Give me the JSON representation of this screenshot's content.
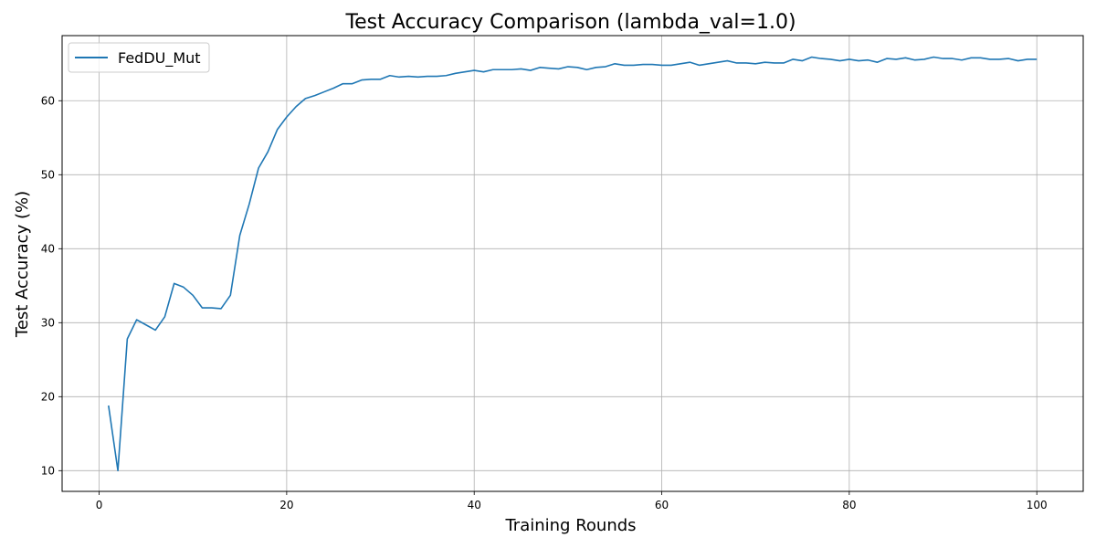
{
  "chart_data": {
    "type": "line",
    "title": "Test Accuracy Comparison (lambda_val=1.0)",
    "xlabel": "Training Rounds",
    "ylabel": "Test Accuracy (%)",
    "xlim": [
      -3.95,
      104.95
    ],
    "ylim": [
      7.2,
      68.8
    ],
    "xticks": [
      0,
      20,
      40,
      60,
      80,
      100
    ],
    "yticks": [
      10,
      20,
      30,
      40,
      50,
      60
    ],
    "grid": true,
    "legend": "top-left",
    "series": [
      {
        "name": "FedDU_Mut",
        "color": "#1f77b4",
        "x": [
          1,
          2,
          3,
          4,
          5,
          6,
          7,
          8,
          9,
          10,
          11,
          12,
          13,
          14,
          15,
          16,
          17,
          18,
          19,
          20,
          21,
          22,
          23,
          24,
          25,
          26,
          27,
          28,
          29,
          30,
          31,
          32,
          33,
          34,
          35,
          36,
          37,
          38,
          39,
          40,
          41,
          42,
          43,
          44,
          45,
          46,
          47,
          48,
          49,
          50,
          51,
          52,
          53,
          54,
          55,
          56,
          57,
          58,
          59,
          60,
          61,
          62,
          63,
          64,
          65,
          66,
          67,
          68,
          69,
          70,
          71,
          72,
          73,
          74,
          75,
          76,
          77,
          78,
          79,
          80,
          81,
          82,
          83,
          84,
          85,
          86,
          87,
          88,
          89,
          90,
          91,
          92,
          93,
          94,
          95,
          96,
          97,
          98,
          99,
          100
        ],
        "values": [
          18.8,
          10.0,
          27.8,
          30.4,
          29.7,
          29.0,
          30.8,
          35.3,
          34.8,
          33.7,
          32.0,
          32.0,
          31.9,
          33.7,
          41.8,
          46.0,
          50.9,
          53.1,
          56.1,
          57.8,
          59.2,
          60.3,
          60.7,
          61.2,
          61.7,
          62.3,
          62.3,
          62.8,
          62.9,
          62.9,
          63.4,
          63.2,
          63.3,
          63.2,
          63.3,
          63.3,
          63.4,
          63.7,
          63.9,
          64.1,
          63.9,
          64.2,
          64.2,
          64.2,
          64.3,
          64.1,
          64.5,
          64.4,
          64.3,
          64.6,
          64.5,
          64.2,
          64.5,
          64.6,
          65.0,
          64.8,
          64.8,
          64.9,
          64.9,
          64.8,
          64.8,
          65.0,
          65.2,
          64.8,
          65.0,
          65.2,
          65.4,
          65.1,
          65.1,
          65.0,
          65.2,
          65.1,
          65.1,
          65.6,
          65.4,
          65.9,
          65.7,
          65.6,
          65.4,
          65.6,
          65.4,
          65.5,
          65.2,
          65.7,
          65.6,
          65.8,
          65.5,
          65.6,
          65.9,
          65.7,
          65.7,
          65.5,
          65.8,
          65.8,
          65.6,
          65.6,
          65.7,
          65.4,
          65.6,
          65.6
        ]
      }
    ]
  }
}
